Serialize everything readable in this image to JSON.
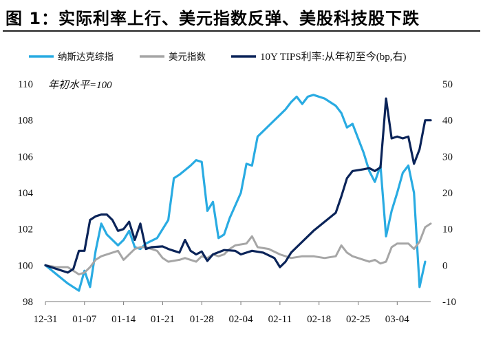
{
  "title": "图 1：实际利率上行、美元指数反弹、美股科技股下跌",
  "chart_data": {
    "type": "line",
    "categories": [
      "12-31",
      "01-07",
      "01-14",
      "01-21",
      "01-28",
      "02-04",
      "02-11",
      "02-18",
      "02-25",
      "03-04"
    ],
    "annotation": "年初水平=100",
    "y_left": {
      "ticks": [
        "98",
        "100",
        "102",
        "104",
        "106",
        "108",
        "110"
      ],
      "range": [
        98,
        110
      ]
    },
    "y_right": {
      "ticks": [
        "-10",
        "0",
        "10",
        "20",
        "30",
        "40",
        "50"
      ],
      "range": [
        -10,
        50
      ]
    },
    "grid": false,
    "legend_position": "top",
    "series": [
      {
        "name": "纳斯达克综指",
        "axis": "left",
        "color": "#29ABE2",
        "values": [
          [
            0,
            100
          ],
          [
            2,
            99.5
          ],
          [
            4,
            99.0
          ],
          [
            6,
            98.6
          ],
          [
            7,
            99.7
          ],
          [
            8,
            98.8
          ],
          [
            9,
            100.8
          ],
          [
            10,
            102.3
          ],
          [
            11,
            101.7
          ],
          [
            13,
            101.1
          ],
          [
            14,
            101.4
          ],
          [
            15,
            101.9
          ],
          [
            16,
            101.0
          ],
          [
            17,
            100.9
          ],
          [
            18,
            101.2
          ],
          [
            20,
            101.5
          ],
          [
            22,
            102.5
          ],
          [
            23,
            104.8
          ],
          [
            24,
            105.0
          ],
          [
            26,
            105.5
          ],
          [
            27,
            105.8
          ],
          [
            28,
            105.7
          ],
          [
            29,
            103.0
          ],
          [
            30,
            103.5
          ],
          [
            31,
            101.5
          ],
          [
            32,
            101.7
          ],
          [
            33,
            102.6
          ],
          [
            35,
            104.0
          ],
          [
            36,
            105.6
          ],
          [
            37,
            105.5
          ],
          [
            38,
            107.1
          ],
          [
            40,
            107.7
          ],
          [
            42,
            108.3
          ],
          [
            43,
            108.6
          ],
          [
            44,
            109.0
          ],
          [
            45,
            109.3
          ],
          [
            46,
            108.9
          ],
          [
            47,
            109.3
          ],
          [
            48,
            109.4
          ],
          [
            50,
            109.2
          ],
          [
            52,
            108.8
          ],
          [
            53,
            108.4
          ],
          [
            54,
            107.6
          ],
          [
            55,
            107.8
          ],
          [
            56,
            107.0
          ],
          [
            57,
            106.2
          ],
          [
            58,
            105.2
          ],
          [
            59,
            104.6
          ],
          [
            60,
            105.5
          ],
          [
            61,
            101.6
          ],
          [
            62,
            103.0
          ],
          [
            63,
            104.0
          ],
          [
            64,
            105.1
          ],
          [
            65,
            105.5
          ],
          [
            66,
            104.0
          ],
          [
            67,
            98.8
          ],
          [
            68,
            100.2
          ]
        ]
      },
      {
        "name": "美元指数",
        "axis": "left",
        "color": "#A6A6A6",
        "values": [
          [
            0,
            100
          ],
          [
            2,
            99.9
          ],
          [
            4,
            99.9
          ],
          [
            5,
            99.7
          ],
          [
            6,
            99.5
          ],
          [
            7,
            99.6
          ],
          [
            8,
            99.9
          ],
          [
            9,
            100.3
          ],
          [
            10,
            100.5
          ],
          [
            12,
            100.7
          ],
          [
            13,
            100.8
          ],
          [
            14,
            100.3
          ],
          [
            15,
            100.6
          ],
          [
            16,
            100.9
          ],
          [
            17,
            101.0
          ],
          [
            18,
            101.0
          ],
          [
            20,
            100.8
          ],
          [
            21,
            100.4
          ],
          [
            22,
            100.2
          ],
          [
            24,
            100.3
          ],
          [
            25,
            100.4
          ],
          [
            26,
            100.3
          ],
          [
            27,
            100.2
          ],
          [
            28,
            100.5
          ],
          [
            29,
            100.4
          ],
          [
            30,
            100.6
          ],
          [
            31,
            100.5
          ],
          [
            32,
            100.6
          ],
          [
            33,
            100.9
          ],
          [
            34,
            101.1
          ],
          [
            36,
            101.2
          ],
          [
            37,
            101.6
          ],
          [
            38,
            101.0
          ],
          [
            40,
            100.9
          ],
          [
            42,
            100.6
          ],
          [
            44,
            100.4
          ],
          [
            46,
            100.5
          ],
          [
            48,
            100.5
          ],
          [
            50,
            100.4
          ],
          [
            52,
            100.5
          ],
          [
            53,
            101.1
          ],
          [
            54,
            100.7
          ],
          [
            55,
            100.5
          ],
          [
            57,
            100.3
          ],
          [
            58,
            100.2
          ],
          [
            59,
            100.3
          ],
          [
            60,
            100.1
          ],
          [
            61,
            100.2
          ],
          [
            62,
            101.0
          ],
          [
            63,
            101.2
          ],
          [
            65,
            101.2
          ],
          [
            66,
            100.9
          ],
          [
            67,
            101.3
          ],
          [
            68,
            102.1
          ],
          [
            69,
            102.3
          ]
        ]
      },
      {
        "name": "10Y TIPS利率:从年初至今(bp,右)",
        "axis": "right",
        "color": "#0B2459",
        "values": [
          [
            0,
            0
          ],
          [
            2,
            -1.0
          ],
          [
            4,
            -2.0
          ],
          [
            5,
            -1.0
          ],
          [
            6,
            4.0
          ],
          [
            7,
            4.0
          ],
          [
            8,
            12.5
          ],
          [
            9,
            13.5
          ],
          [
            10,
            14.0
          ],
          [
            11,
            14.0
          ],
          [
            12,
            12.5
          ],
          [
            13,
            9.5
          ],
          [
            14,
            10.0
          ],
          [
            15,
            12.0
          ],
          [
            16,
            7.0
          ],
          [
            17,
            11.5
          ],
          [
            18,
            4.5
          ],
          [
            19,
            5.0
          ],
          [
            21,
            5.2
          ],
          [
            22,
            4.5
          ],
          [
            23,
            4.0
          ],
          [
            24,
            3.5
          ],
          [
            25,
            7.0
          ],
          [
            26,
            4.0
          ],
          [
            27,
            3.0
          ],
          [
            28,
            3.8
          ],
          [
            29,
            1.2
          ],
          [
            30,
            3.0
          ],
          [
            32,
            4.2
          ],
          [
            34,
            4.0
          ],
          [
            35,
            3.0
          ],
          [
            36,
            3.5
          ],
          [
            37,
            4.0
          ],
          [
            39,
            3.5
          ],
          [
            41,
            2.0
          ],
          [
            42,
            -0.5
          ],
          [
            43,
            1.0
          ],
          [
            44,
            3.5
          ],
          [
            46,
            6.5
          ],
          [
            48,
            9.5
          ],
          [
            50,
            12.0
          ],
          [
            52,
            14.5
          ],
          [
            53,
            19.0
          ],
          [
            54,
            24.0
          ],
          [
            55,
            26.0
          ],
          [
            57,
            26.5
          ],
          [
            58,
            26.8
          ],
          [
            59,
            26.0
          ],
          [
            60,
            27.0
          ],
          [
            61,
            46.0
          ],
          [
            62,
            35.0
          ],
          [
            63,
            35.5
          ],
          [
            64,
            35.0
          ],
          [
            65,
            35.5
          ],
          [
            66,
            28.0
          ],
          [
            67,
            32.0
          ],
          [
            68,
            40.0
          ],
          [
            69,
            40.0
          ]
        ]
      }
    ]
  }
}
